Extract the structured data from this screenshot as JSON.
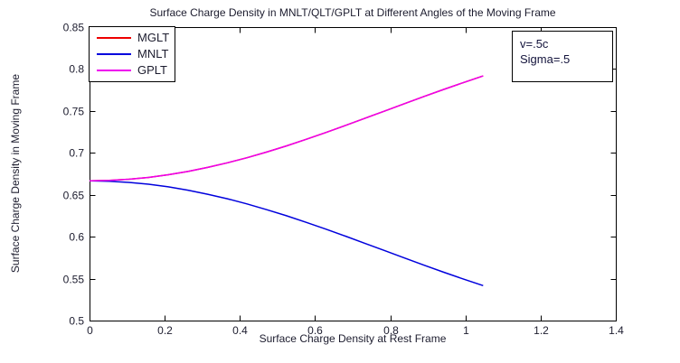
{
  "figure": {
    "background": "#ffffff",
    "frame_color": "#000000",
    "text_color": "#1c1c2e"
  },
  "annotation_box": {
    "line1": "v=.5c",
    "line2": "Sigma=.5"
  },
  "chart_data": {
    "type": "line",
    "title": "Surface Charge Density in MNLT/QLT/GPLT at Different Angles of the Moving Frame",
    "xlabel": "Surface Charge Density at Rest Frame",
    "ylabel": "Surface Charge Density in Moving Frame",
    "xlim": [
      0,
      1.4
    ],
    "ylim": [
      0.5,
      0.85
    ],
    "xticks": [
      "0",
      "0.2",
      "0.4",
      "0.6",
      "0.8",
      "1",
      "1.2",
      "1.4"
    ],
    "yticks": [
      "0.5",
      "0.55",
      "0.6",
      "0.65",
      "0.7",
      "0.75",
      "0.8",
      "0.85"
    ],
    "grid": false,
    "legend_position": "top-left",
    "annotations": [
      "v=.5c",
      "Sigma=.5"
    ],
    "x": [
      0,
      0.0524,
      0.1047,
      0.1571,
      0.2094,
      0.2618,
      0.3142,
      0.3665,
      0.4189,
      0.4712,
      0.5236,
      0.576,
      0.6283,
      0.6807,
      0.733,
      0.7854,
      0.8378,
      0.8901,
      0.9425,
      0.9948,
      1.0472
    ],
    "series": [
      {
        "name": "MGLT",
        "color": "#ee0000",
        "values": [
          0.6667,
          0.6671,
          0.6685,
          0.6707,
          0.6739,
          0.6778,
          0.6826,
          0.6881,
          0.6942,
          0.701,
          0.7083,
          0.7161,
          0.7242,
          0.7327,
          0.7413,
          0.75,
          0.7587,
          0.7673,
          0.7757,
          0.7839,
          0.7917
        ]
      },
      {
        "name": "MNLT",
        "color": "#0000dd",
        "values": [
          0.6667,
          0.6662,
          0.6648,
          0.6626,
          0.6595,
          0.6555,
          0.6507,
          0.6453,
          0.6391,
          0.6323,
          0.625,
          0.6172,
          0.6091,
          0.6007,
          0.592,
          0.5833,
          0.5746,
          0.566,
          0.5576,
          0.5494,
          0.5417
        ]
      },
      {
        "name": "GPLT",
        "color": "#ee00ee",
        "values": [
          0.6667,
          0.6671,
          0.6685,
          0.6707,
          0.6739,
          0.6778,
          0.6826,
          0.6881,
          0.6942,
          0.701,
          0.7083,
          0.7161,
          0.7242,
          0.7327,
          0.7413,
          0.75,
          0.7587,
          0.7673,
          0.7757,
          0.7839,
          0.7917
        ]
      }
    ]
  }
}
